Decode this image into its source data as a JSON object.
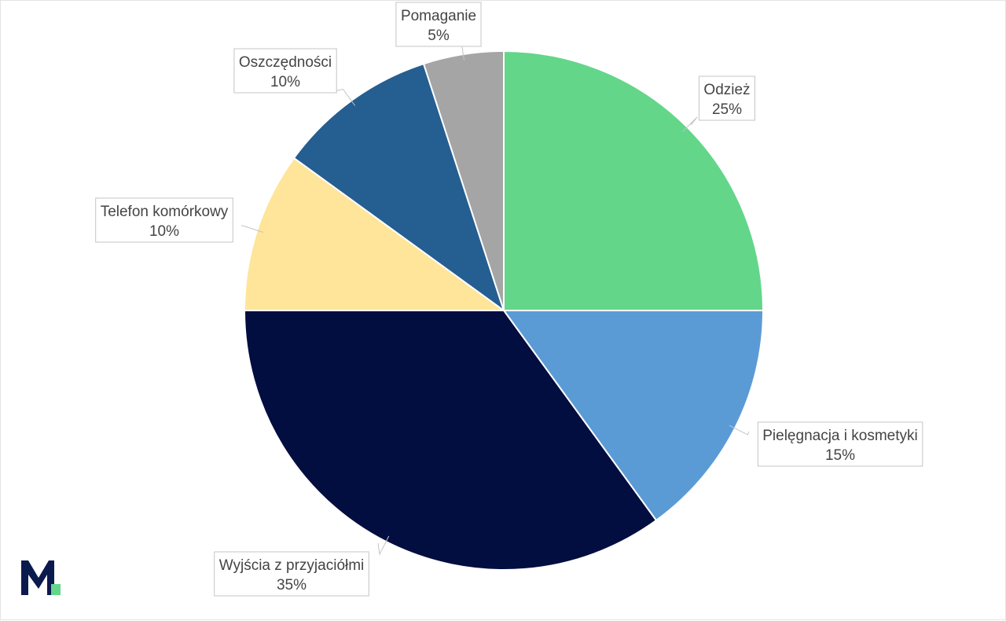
{
  "chart_data": {
    "type": "pie",
    "title": "",
    "legend": "none",
    "slices": [
      {
        "name": "Odzież",
        "value": 25,
        "label": "25%",
        "color": "#63d68a"
      },
      {
        "name": "Pielęgnacja i kosmetyki",
        "value": 15,
        "label": "15%",
        "color": "#5b9bd5"
      },
      {
        "name": "Wyjścia z przyjaciółmi",
        "value": 35,
        "label": "35%",
        "color": "#020d40"
      },
      {
        "name": "Telefon komórkowy",
        "value": 10,
        "label": "10%",
        "color": "#fee599"
      },
      {
        "name": "Oszczędności",
        "value": 10,
        "label": "10%",
        "color": "#255e91"
      },
      {
        "name": "Pomaganie",
        "value": 5,
        "label": "5%",
        "color": "#a5a5a5"
      }
    ]
  },
  "logo": {
    "icon": "m-logo-icon",
    "primary_color": "#0b1a4d",
    "accent_color": "#63d68a"
  }
}
